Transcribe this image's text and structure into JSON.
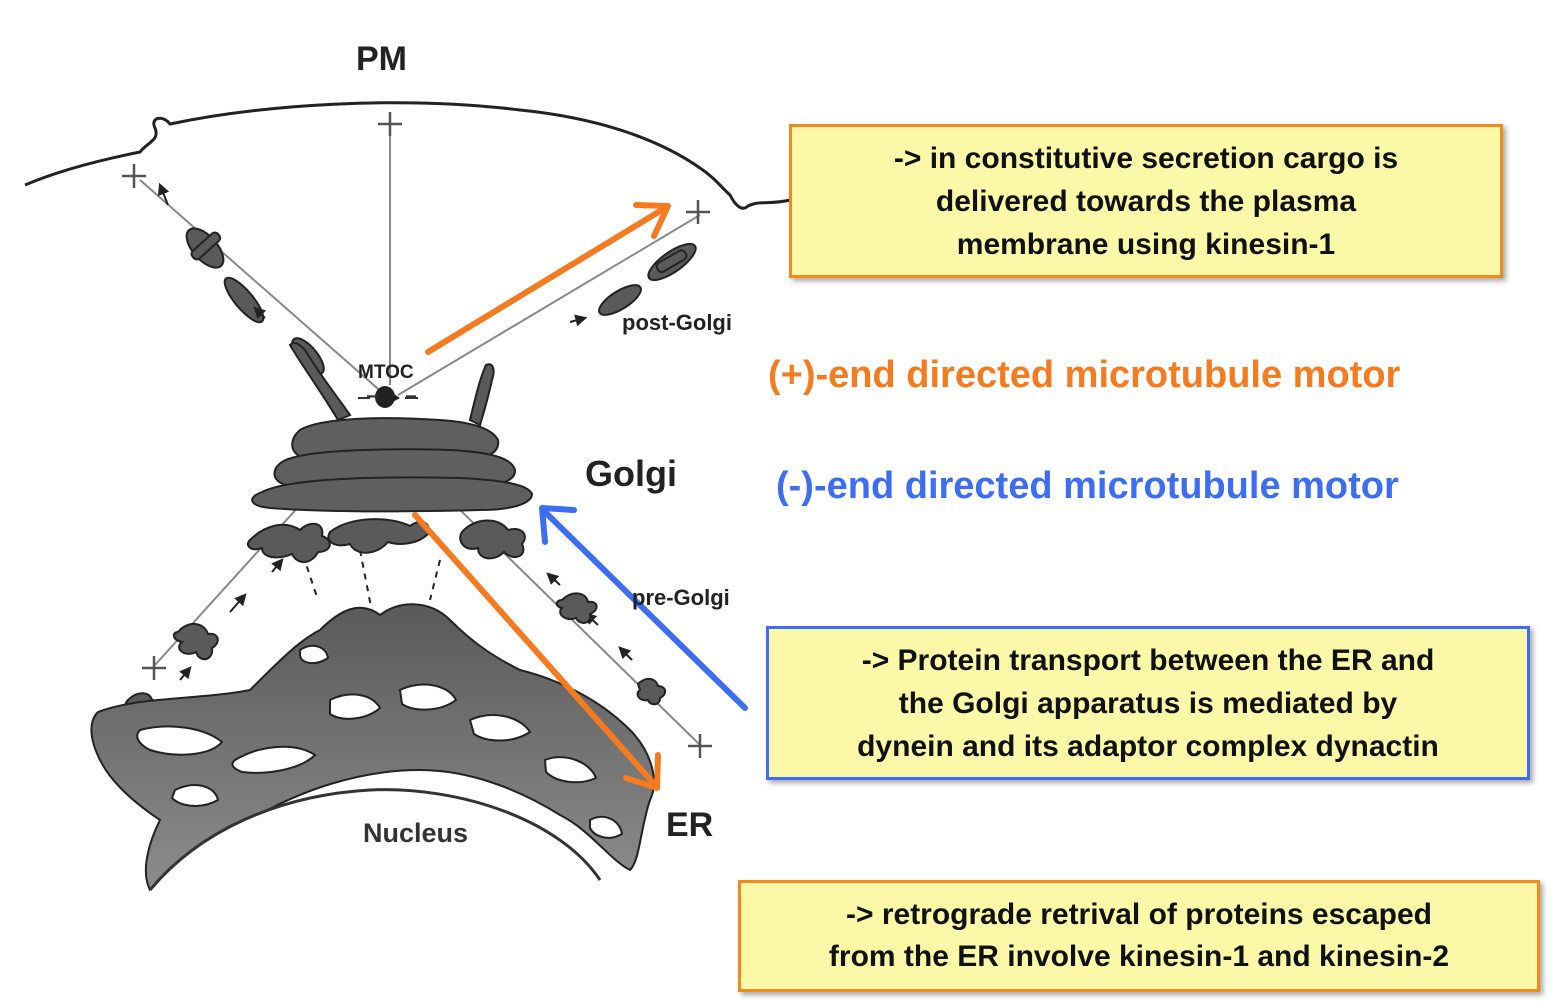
{
  "labels": {
    "pm": "PM",
    "mtoc": "MTOC",
    "post_golgi": "post-Golgi",
    "golgi": "Golgi",
    "pre_golgi": "pre-Golgi",
    "nucleus": "Nucleus",
    "er": "ER",
    "plus_sign": "+",
    "minus_sign": "−"
  },
  "motor_types": {
    "plus_end": {
      "text": "(+)-end directed microtubule motor",
      "color": "#f47b20"
    },
    "minus_end": {
      "text": "(-)-end directed microtubule motor",
      "color": "#3d6ef2"
    }
  },
  "boxes": {
    "secretion": {
      "lines": [
        "-> in constitutive secretion cargo is",
        "delivered towards the plasma",
        "membrane using kinesin-1"
      ],
      "border_color": "#f08a1c"
    },
    "transport": {
      "lines": [
        "-> Protein transport between the ER and",
        "the Golgi apparatus is mediated by",
        "dynein and its adaptor complex dynactin"
      ],
      "border_color": "#3d6ef2"
    },
    "retrograde": {
      "lines": [
        "-> retrograde retrival of proteins escaped",
        "from the ER involve kinesin-1 and kinesin-2"
      ],
      "border_color": "#f08a1c"
    }
  },
  "colors": {
    "orange_arrow": "#f47b20",
    "blue_arrow": "#3d6ef2",
    "organelle_fill": "#5f5f5f",
    "box_fill": "#fbf8a8"
  }
}
